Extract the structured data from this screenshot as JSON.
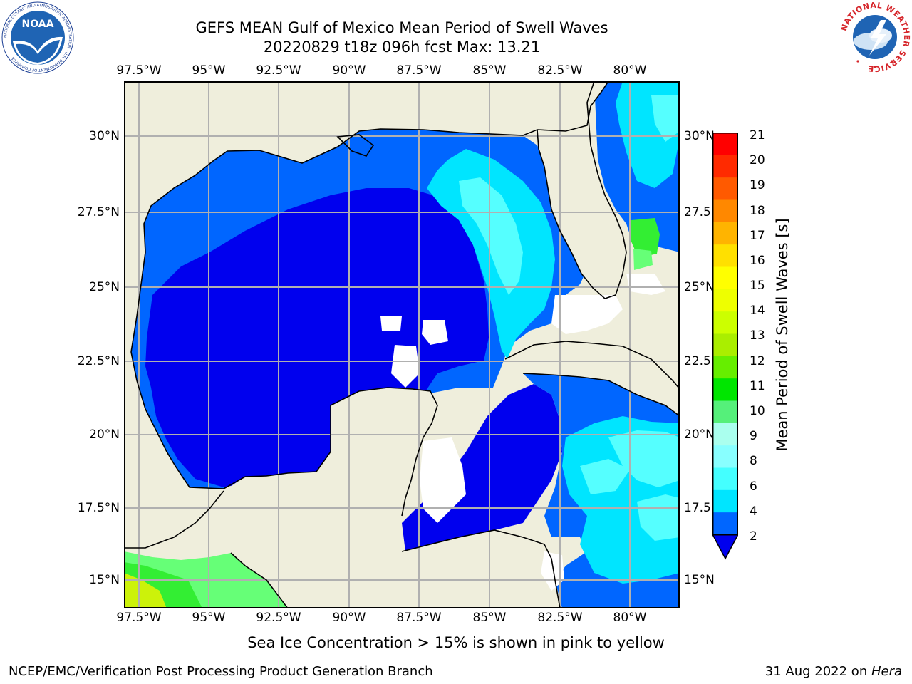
{
  "title_line1": "GEFS MEAN Gulf of Mexico Mean Period of Swell Waves",
  "title_line2": "20220829 t18z 096h fcst   Max: 13.21",
  "lon_labels": [
    "97.5°W",
    "95°W",
    "92.5°W",
    "90°W",
    "87.5°W",
    "85°W",
    "82.5°W",
    "80°W"
  ],
  "lat_labels_left": [
    "30°N",
    "27.5°N",
    "25°N",
    "22.5°N",
    "20°N",
    "17.5°N",
    "15°N"
  ],
  "lat_labels_right": [
    "30°N",
    "27.5",
    "25°N",
    "22.5",
    "20°N",
    "17.5",
    "15°N"
  ],
  "colorbar": {
    "title": "Mean Period of Swell Waves [s]",
    "tick_labels": [
      "21",
      "20",
      "19",
      "18",
      "17",
      "16",
      "15",
      "14",
      "13",
      "12",
      "11",
      "10",
      "9",
      "8",
      "6",
      "4",
      "2"
    ],
    "colors_bottom_to_top": [
      "#0066ff",
      "#00e5ff",
      "#44ffff",
      "#88ffff",
      "#aaffee",
      "#55f07a",
      "#00e600",
      "#66ee00",
      "#aaee00",
      "#ccff00",
      "#eeff00",
      "#ffff00",
      "#ffe000",
      "#ffb400",
      "#ff8800",
      "#ff5a00",
      "#ff2a00",
      "#ff0000"
    ],
    "extend_color": "#0000ee"
  },
  "map_colors": {
    "land": "#efeedc",
    "deep_blue": "#0000ee",
    "blue": "#0066ff",
    "cyan": "#00e5ff",
    "light_cyan": "#55ffff",
    "green": "#33ee33",
    "light_green": "#66ff77",
    "yellow_green": "#ccf20a",
    "grid": "#b0b0b0"
  },
  "note": "Sea Ice Concentration > 15% is shown in pink to yellow",
  "footer_left": "NCEP/EMC/Verification Post Processing Product Generation Branch",
  "footer_right_prefix": "31 Aug 2022 on ",
  "footer_right_host": "Hera",
  "logos": {
    "left_icon": "noaa-logo",
    "left_text": "NOAA",
    "left_ring_text": "NATIONAL OCEANIC AND ATMOSPHERIC ADMINISTRATION · U.S. DEPARTMENT OF COMMERCE ·",
    "right_icon": "nws-logo",
    "right_ring_text": "NATIONAL WEATHER SERVICE"
  }
}
